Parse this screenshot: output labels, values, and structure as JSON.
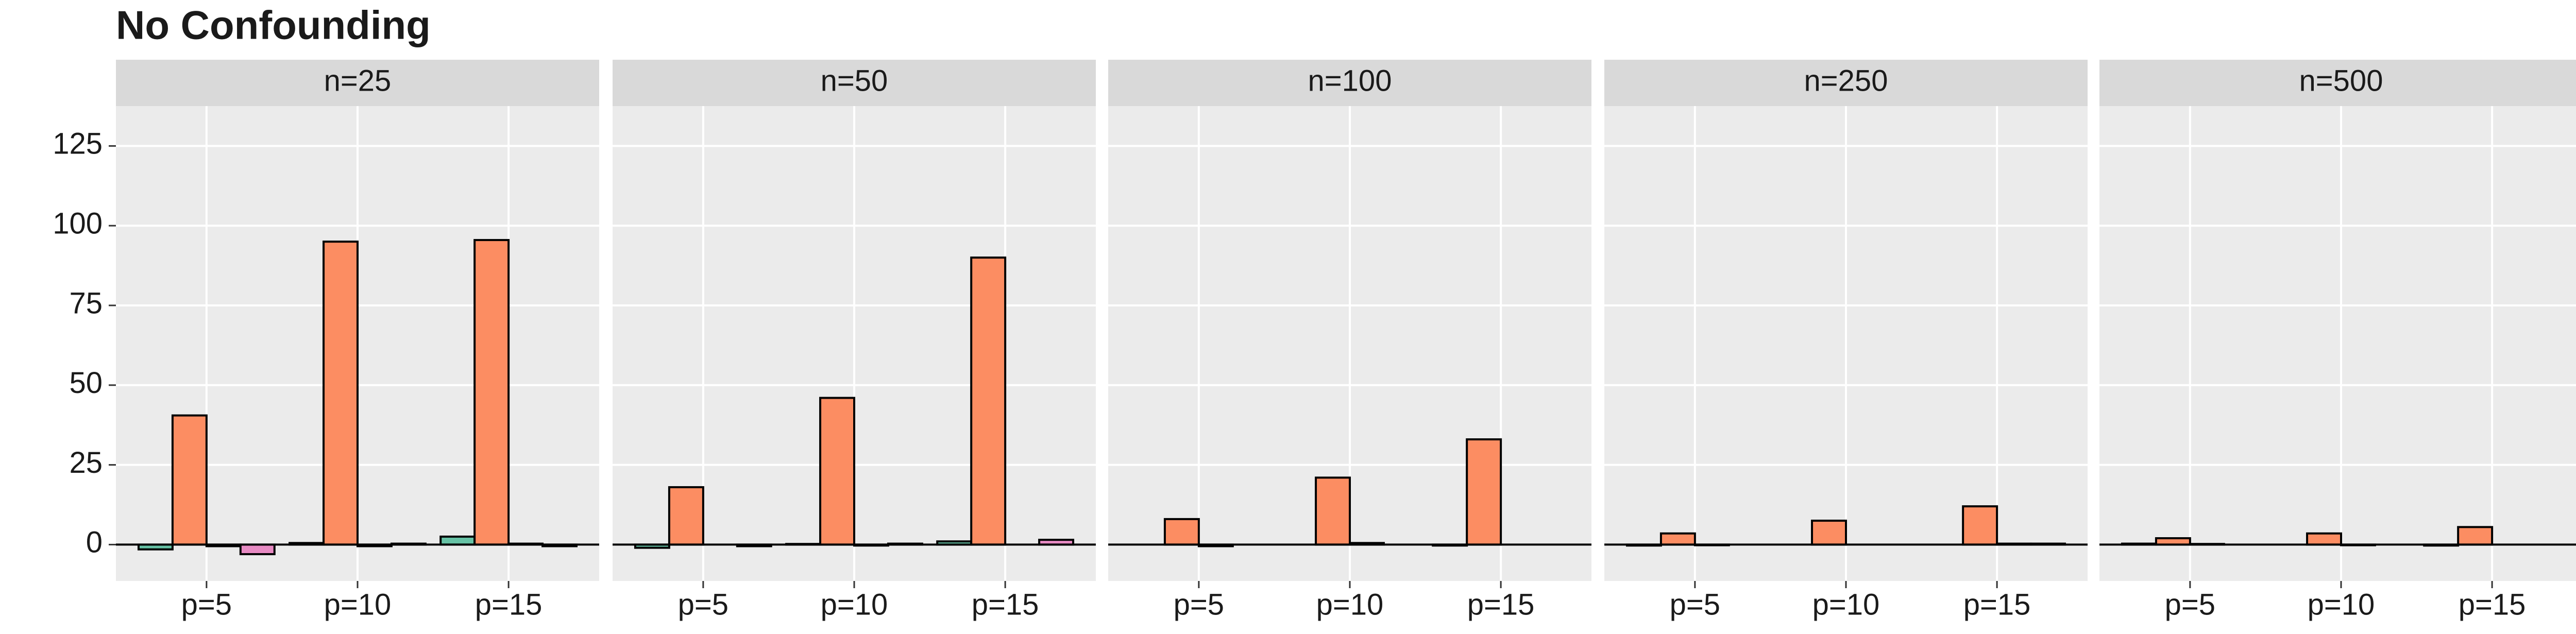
{
  "title": "No Confounding",
  "chart_data": [
    {
      "type": "bar",
      "title": "n=25",
      "categories": [
        "p=5",
        "p=10",
        "p=15"
      ],
      "series": [
        {
          "color": "#66c2a5",
          "values": [
            -1.5,
            0.5,
            2.5
          ]
        },
        {
          "color": "#fc8d62",
          "values": [
            40.5,
            95,
            95.5
          ]
        },
        {
          "color": "#8da0cb",
          "values": [
            -0.5,
            -0.5,
            0.3
          ]
        },
        {
          "color": "#e78ac3",
          "values": [
            -3,
            0.3,
            -0.5
          ]
        }
      ],
      "ylim": [
        -11.4,
        137.5
      ],
      "yticks": [
        0,
        25,
        50,
        75,
        100,
        125
      ],
      "grid": true
    },
    {
      "type": "bar",
      "title": "n=50",
      "categories": [
        "p=5",
        "p=10",
        "p=15"
      ],
      "series": [
        {
          "color": "#66c2a5",
          "values": [
            -1,
            0.2,
            1
          ]
        },
        {
          "color": "#fc8d62",
          "values": [
            18,
            46,
            90
          ]
        },
        {
          "color": "#8da0cb",
          "values": [
            0,
            -0.3,
            0
          ]
        },
        {
          "color": "#e78ac3",
          "values": [
            -0.5,
            0.3,
            1.5
          ]
        }
      ],
      "ylim": [
        -11.4,
        137.5
      ],
      "yticks": [
        0,
        25,
        50,
        75,
        100,
        125
      ],
      "grid": true
    },
    {
      "type": "bar",
      "title": "n=100",
      "categories": [
        "p=5",
        "p=10",
        "p=15"
      ],
      "series": [
        {
          "color": "#66c2a5",
          "values": [
            0,
            0,
            -0.3
          ]
        },
        {
          "color": "#fc8d62",
          "values": [
            8,
            21,
            33
          ]
        },
        {
          "color": "#8da0cb",
          "values": [
            -0.5,
            0.5,
            0
          ]
        },
        {
          "color": "#e78ac3",
          "values": [
            0,
            0,
            0
          ]
        }
      ],
      "ylim": [
        -11.4,
        137.5
      ],
      "yticks": [
        0,
        25,
        50,
        75,
        100,
        125
      ],
      "grid": true
    },
    {
      "type": "bar",
      "title": "n=250",
      "categories": [
        "p=5",
        "p=10",
        "p=15"
      ],
      "series": [
        {
          "color": "#66c2a5",
          "values": [
            -0.3,
            0,
            0
          ]
        },
        {
          "color": "#fc8d62",
          "values": [
            3.5,
            7.5,
            12
          ]
        },
        {
          "color": "#8da0cb",
          "values": [
            -0.2,
            0,
            0.3
          ]
        },
        {
          "color": "#e78ac3",
          "values": [
            0,
            0,
            0.3
          ]
        }
      ],
      "ylim": [
        -11.4,
        137.5
      ],
      "yticks": [
        0,
        25,
        50,
        75,
        100,
        125
      ],
      "grid": true
    },
    {
      "type": "bar",
      "title": "n=500",
      "categories": [
        "p=5",
        "p=10",
        "p=15"
      ],
      "series": [
        {
          "color": "#66c2a5",
          "values": [
            0.3,
            0,
            -0.3
          ]
        },
        {
          "color": "#fc8d62",
          "values": [
            2,
            3.5,
            5.5
          ]
        },
        {
          "color": "#8da0cb",
          "values": [
            0.2,
            -0.2,
            0
          ]
        },
        {
          "color": "#e78ac3",
          "values": [
            0,
            0,
            0
          ]
        }
      ],
      "ylim": [
        -11.4,
        137.5
      ],
      "yticks": [
        0,
        25,
        50,
        75,
        100,
        125
      ],
      "grid": true
    }
  ]
}
